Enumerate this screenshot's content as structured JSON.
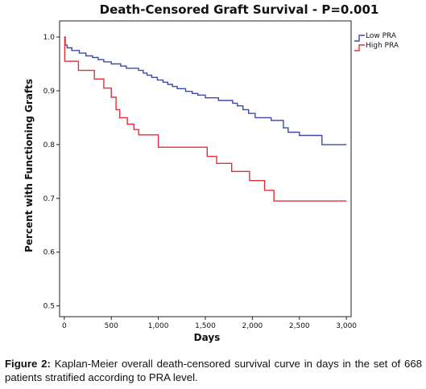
{
  "chart_data": {
    "type": "line",
    "step": true,
    "title": "Death-Censored Graft Survival - P=0.001",
    "xlabel": "Days",
    "ylabel": "Percent with Functioning Grafts",
    "xlim": [
      -50,
      3050
    ],
    "ylim": [
      0.48,
      1.03
    ],
    "xticks": [
      0,
      500,
      1000,
      1500,
      2000,
      2500,
      3000
    ],
    "xtick_labels": [
      "0",
      "500",
      "1,000",
      "1,500",
      "2,000",
      "2,500",
      "3,000"
    ],
    "yticks": [
      0.5,
      0.6,
      0.7,
      0.8,
      0.9,
      1.0
    ],
    "ytick_labels": [
      "0.5",
      "0.6",
      "0.7",
      "0.8",
      "0.9",
      "1.0"
    ],
    "legend_position": "top-right",
    "grid": false,
    "series": [
      {
        "name": "Low PRA",
        "color": "#3b4aa8",
        "points": [
          [
            0,
            1.0
          ],
          [
            10,
            0.985
          ],
          [
            30,
            0.98
          ],
          [
            80,
            0.975
          ],
          [
            160,
            0.97
          ],
          [
            230,
            0.965
          ],
          [
            300,
            0.962
          ],
          [
            360,
            0.958
          ],
          [
            420,
            0.954
          ],
          [
            500,
            0.95
          ],
          [
            600,
            0.946
          ],
          [
            660,
            0.942
          ],
          [
            790,
            0.938
          ],
          [
            840,
            0.933
          ],
          [
            880,
            0.929
          ],
          [
            930,
            0.925
          ],
          [
            990,
            0.92
          ],
          [
            1050,
            0.916
          ],
          [
            1100,
            0.912
          ],
          [
            1150,
            0.908
          ],
          [
            1200,
            0.904
          ],
          [
            1290,
            0.899
          ],
          [
            1360,
            0.895
          ],
          [
            1420,
            0.892
          ],
          [
            1500,
            0.887
          ],
          [
            1640,
            0.882
          ],
          [
            1790,
            0.877
          ],
          [
            1840,
            0.872
          ],
          [
            1900,
            0.865
          ],
          [
            1960,
            0.858
          ],
          [
            2030,
            0.85
          ],
          [
            2200,
            0.845
          ],
          [
            2330,
            0.831
          ],
          [
            2380,
            0.823
          ],
          [
            2500,
            0.817
          ],
          [
            2740,
            0.8
          ],
          [
            3000,
            0.8
          ]
        ]
      },
      {
        "name": "High PRA",
        "color": "#e0303a",
        "points": [
          [
            0,
            1.0
          ],
          [
            5,
            0.955
          ],
          [
            150,
            0.938
          ],
          [
            320,
            0.922
          ],
          [
            420,
            0.905
          ],
          [
            500,
            0.888
          ],
          [
            550,
            0.865
          ],
          [
            590,
            0.85
          ],
          [
            670,
            0.838
          ],
          [
            740,
            0.828
          ],
          [
            790,
            0.818
          ],
          [
            1000,
            0.795
          ],
          [
            1520,
            0.778
          ],
          [
            1620,
            0.765
          ],
          [
            1780,
            0.75
          ],
          [
            1970,
            0.733
          ],
          [
            2130,
            0.715
          ],
          [
            2230,
            0.695
          ],
          [
            3000,
            0.695
          ]
        ]
      }
    ]
  },
  "caption": {
    "label": "Figure 2:",
    "text": " Kaplan-Meier overall death-censored survival curve in days in the set of 668 patients stratified according to PRA level."
  }
}
